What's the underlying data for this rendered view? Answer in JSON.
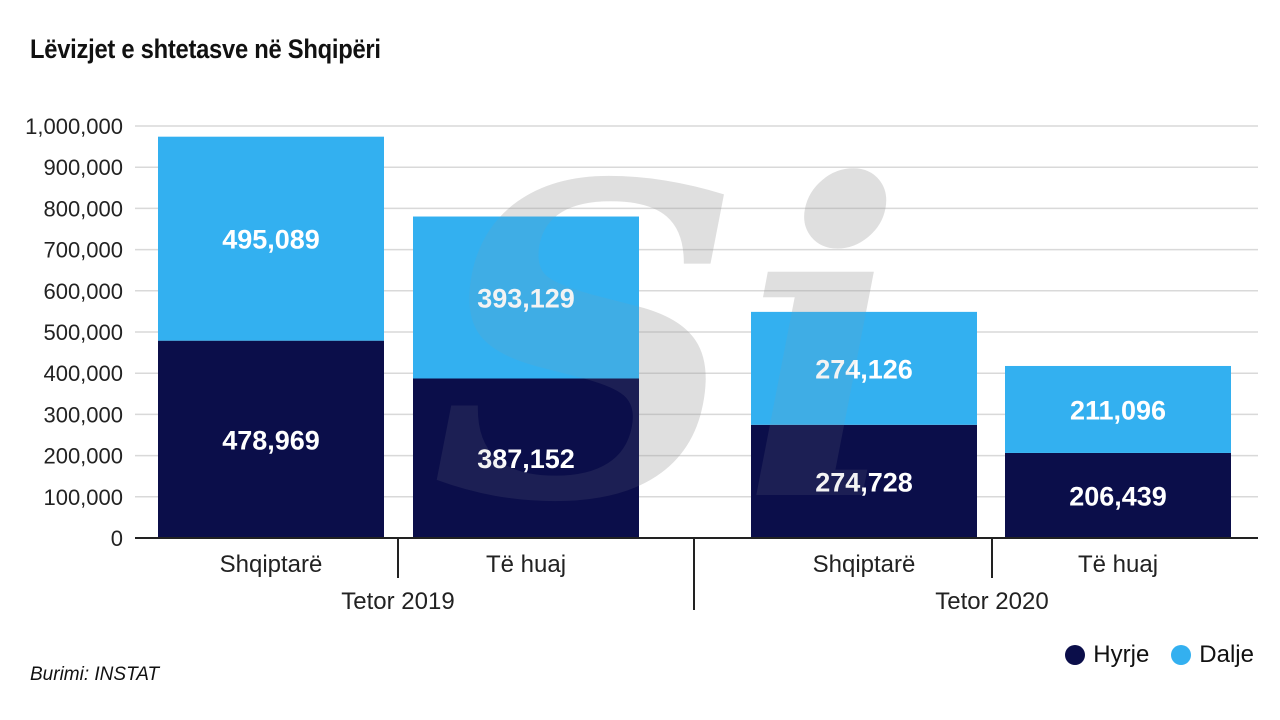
{
  "title": "Lëvizjet e shtetasve në Shqipëri",
  "source": "Burimi: INSTAT",
  "colors": {
    "hyrje": "#0b0e4a",
    "dalje": "#33b0f0",
    "grid": "#d9d9d9",
    "axis": "#222222"
  },
  "watermark": {
    "symbol": "Si",
    "icon": "watermark-logo"
  },
  "chart_data": {
    "type": "bar",
    "stacked": true,
    "title": "Lëvizjet e shtetasve në Shqipëri",
    "categories": [
      "Shqiptarë",
      "Të huaj",
      "Shqiptarë",
      "Të huaj"
    ],
    "groups": [
      {
        "label": "Tetor 2019",
        "category_indices": [
          0,
          1
        ]
      },
      {
        "label": "Tetor 2020",
        "category_indices": [
          2,
          3
        ]
      }
    ],
    "series": [
      {
        "name": "Hyrje",
        "values": [
          478969,
          387152,
          274728,
          206439
        ]
      },
      {
        "name": "Dalje",
        "values": [
          495089,
          393129,
          274126,
          211096
        ]
      }
    ],
    "data_labels": [
      [
        "478,969",
        "387,152",
        "274,728",
        "206,439"
      ],
      [
        "495,089",
        "393,129",
        "274,126",
        "211,096"
      ]
    ],
    "ylim": [
      0,
      1000000
    ],
    "yticks": [
      0,
      100000,
      200000,
      300000,
      400000,
      500000,
      600000,
      700000,
      800000,
      900000,
      1000000
    ],
    "ytick_labels": [
      "0",
      "100,000",
      "200,000",
      "300,000",
      "400,000",
      "500,000",
      "600,000",
      "700,000",
      "800,000",
      "900,000",
      "1,000,000"
    ],
    "grid": true,
    "legend_position": "bottom-right",
    "xlabel": "",
    "ylabel": ""
  }
}
